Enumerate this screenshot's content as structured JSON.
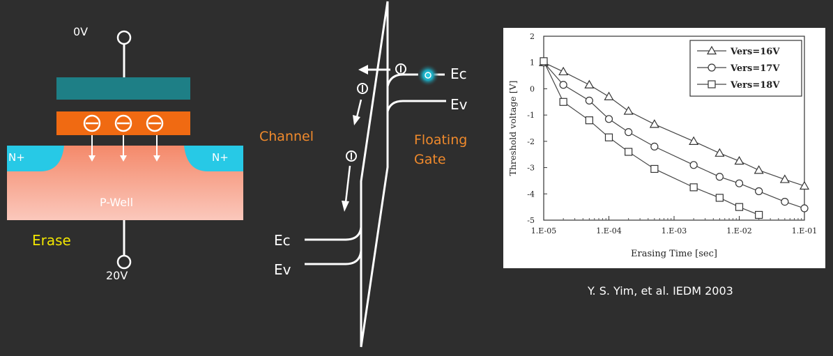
{
  "device": {
    "gate_voltage": "0V",
    "substrate_voltage": "20V",
    "n_plus_left": "N+",
    "n_plus_right": "N+",
    "p_well": "P-Well",
    "erase": "Erase",
    "colors": {
      "background": "#2e2e2e",
      "control_gate": "#1e7f86",
      "floating_gate": "#f06a12",
      "n_region": "#27c9e6",
      "p_well_top": "#f4896a",
      "p_well_bottom": "#fbc8bc",
      "erase_label": "#f2e600"
    }
  },
  "band": {
    "channel": "Channel",
    "floating_gate": "Floating Gate",
    "ec_right": "Ec",
    "ev_right": "Ev",
    "ec_left": "Ec",
    "ev_left": "Ev",
    "colors": {
      "orange_text": "#f08a2c",
      "glow": "#28d3ea"
    }
  },
  "chart_data": {
    "type": "line",
    "xlabel": "Erasing Time [sec]",
    "ylabel": "Threshold voltage [V]",
    "x_scale": "log",
    "xlim": [
      1e-05,
      0.1
    ],
    "ylim": [
      -5,
      2
    ],
    "x_ticks": [
      "1.E-05",
      "1.E-04",
      "1.E-03",
      "1.E-02",
      "1.E-01"
    ],
    "y_ticks": [
      "2",
      "1",
      "0",
      "-1",
      "-2",
      "-3",
      "-4",
      "-5"
    ],
    "legend_position": "top-right",
    "grid": false,
    "series": [
      {
        "name": "Vers=16V",
        "marker": "triangle",
        "x": [
          1e-05,
          2e-05,
          5e-05,
          0.0001,
          0.0002,
          0.0005,
          0.002,
          0.005,
          0.01,
          0.02,
          0.05,
          0.1
        ],
        "y": [
          1.0,
          0.65,
          0.15,
          -0.3,
          -0.85,
          -1.35,
          -2.0,
          -2.45,
          -2.75,
          -3.1,
          -3.45,
          -3.7
        ]
      },
      {
        "name": "Vers=17V",
        "marker": "circle",
        "x": [
          1e-05,
          2e-05,
          5e-05,
          0.0001,
          0.0002,
          0.0005,
          0.002,
          0.005,
          0.01,
          0.02,
          0.05,
          0.1
        ],
        "y": [
          1.0,
          0.15,
          -0.45,
          -1.15,
          -1.65,
          -2.2,
          -2.9,
          -3.35,
          -3.6,
          -3.9,
          -4.3,
          -4.55
        ]
      },
      {
        "name": "Vers=18V",
        "marker": "square",
        "x": [
          1e-05,
          2e-05,
          5e-05,
          0.0001,
          0.0002,
          0.0005,
          0.002,
          0.005,
          0.01,
          0.02
        ],
        "y": [
          1.05,
          -0.5,
          -1.2,
          -1.85,
          -2.4,
          -3.05,
          -3.75,
          -4.15,
          -4.5,
          -4.8
        ]
      }
    ]
  },
  "citation": "Y. S. Yim, et al. IEDM 2003"
}
